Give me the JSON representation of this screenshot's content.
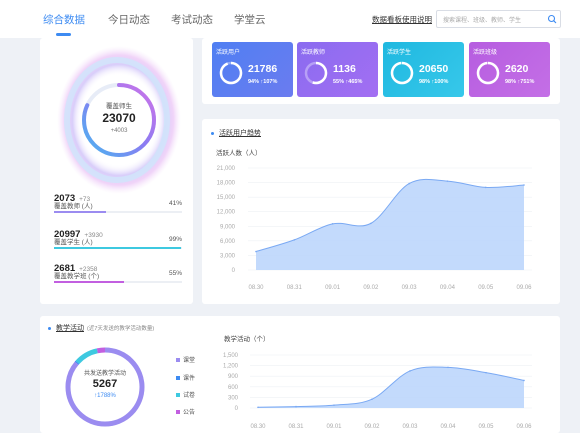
{
  "nav": {
    "tabs": [
      {
        "label": "综合数据",
        "active": true
      },
      {
        "label": "今日动态",
        "active": false
      },
      {
        "label": "考试动态",
        "active": false
      },
      {
        "label": "学堂云",
        "active": false
      }
    ],
    "help_link": "数据看板使用说明",
    "search_placeholder": "搜索课程、班级、教师、学生"
  },
  "overview": {
    "ring_title": "覆盖师生",
    "ring_value": "23070",
    "ring_delta": "+4003",
    "stats": [
      {
        "value": "2073",
        "delta": "+73",
        "label": "覆盖教师 (人)",
        "pct": "41%",
        "fill": 0.41,
        "color": "#9b8cf0"
      },
      {
        "value": "20997",
        "delta": "+3930",
        "label": "覆盖学生 (人)",
        "pct": "99%",
        "fill": 0.99,
        "color": "#3ec9e0"
      },
      {
        "value": "2681",
        "delta": "+2358",
        "label": "覆盖教学班 (个)",
        "pct": "55%",
        "fill": 0.55,
        "color": "#c25fe0"
      }
    ]
  },
  "kpis": [
    {
      "label": "活跃用户",
      "value": "21786",
      "sub": "94% ↑107%",
      "ratio": 0.94,
      "colors": [
        "#4f7ff2",
        "#6b7cf0"
      ]
    },
    {
      "label": "活跃教师",
      "value": "1136",
      "sub": "55% ↑465%",
      "ratio": 0.55,
      "colors": [
        "#8a6cf0",
        "#a36ef2"
      ]
    },
    {
      "label": "活跃学生",
      "value": "20650",
      "sub": "98% ↑100%",
      "ratio": 0.98,
      "colors": [
        "#1fb8e0",
        "#37c8ea"
      ]
    },
    {
      "label": "活跃班级",
      "value": "2620",
      "sub": "98% ↑751%",
      "ratio": 0.98,
      "colors": [
        "#b65de0",
        "#c46fe6"
      ]
    }
  ],
  "active_users": {
    "title": "活跃用户趋势",
    "y_title": "活跃人数（人）",
    "chart_data": {
      "type": "area",
      "categories": [
        "08.30",
        "08.31",
        "09.01",
        "09.02",
        "09.03",
        "09.04",
        "09.05",
        "09.06"
      ],
      "values": [
        3800,
        6200,
        9500,
        9600,
        17800,
        18300,
        17000,
        17500
      ],
      "yticks": [
        0,
        3000,
        6000,
        9000,
        12000,
        15000,
        18000,
        21000
      ],
      "ytick_labels": [
        "0",
        "3,000",
        "6,000",
        "9,000",
        "12,000",
        "15,000",
        "18,000",
        "21,000"
      ],
      "ylim": [
        0,
        21000
      ],
      "fill_color": "#b9d3fb",
      "line_color": "#7aa9f3"
    }
  },
  "teaching": {
    "title": "教学活动",
    "note": "(近7天发送的教学活动数量)",
    "donut_title": "共发送教学活动",
    "donut_value": "5267",
    "donut_delta": "↑1788%",
    "legend": [
      {
        "label": "课堂",
        "color": "#9b8cf0"
      },
      {
        "label": "课件",
        "color": "#3d8bf2"
      },
      {
        "label": "试卷",
        "color": "#3ec9e0"
      },
      {
        "label": "公告",
        "color": "#c25fe0"
      }
    ],
    "donut_shares": [
      0.86,
      0.005,
      0.1,
      0.035
    ],
    "y_title": "教学活动（个）",
    "chart_data": {
      "type": "area",
      "categories": [
        "08.30",
        "08.31",
        "09.01",
        "09.02",
        "09.03",
        "09.04",
        "09.05",
        "09.06"
      ],
      "values": [
        20,
        40,
        80,
        250,
        1050,
        1150,
        1000,
        780
      ],
      "yticks": [
        0,
        300,
        600,
        900,
        1200,
        1500
      ],
      "ytick_labels": [
        "0",
        "300",
        "600",
        "900",
        "1,200",
        "1,500"
      ],
      "ylim": [
        0,
        1500
      ],
      "fill_color": "#b9d3fb",
      "line_color": "#7aa9f3"
    }
  }
}
